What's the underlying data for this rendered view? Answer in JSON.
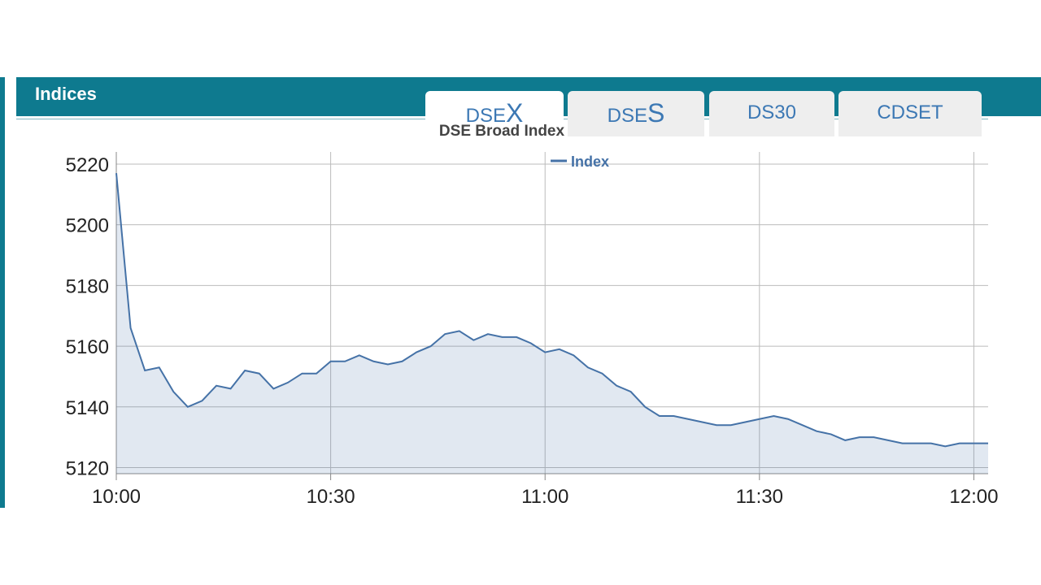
{
  "panel": {
    "title": "Indices"
  },
  "tabs": [
    {
      "label": "DSE",
      "accent": "X"
    },
    {
      "label": "DSE",
      "accent": "S"
    },
    {
      "label": "DS30"
    },
    {
      "label": "CDSET"
    }
  ],
  "chart_data": {
    "type": "line",
    "title": "DSE Broad Index",
    "x": [
      "10:00",
      "10:02",
      "10:04",
      "10:06",
      "10:08",
      "10:10",
      "10:12",
      "10:14",
      "10:16",
      "10:18",
      "10:20",
      "10:22",
      "10:24",
      "10:26",
      "10:28",
      "10:30",
      "10:32",
      "10:34",
      "10:36",
      "10:38",
      "10:40",
      "10:42",
      "10:44",
      "10:46",
      "10:48",
      "10:50",
      "10:52",
      "10:54",
      "10:56",
      "10:58",
      "11:00",
      "11:02",
      "11:04",
      "11:06",
      "11:08",
      "11:10",
      "11:12",
      "11:14",
      "11:16",
      "11:18",
      "11:20",
      "11:22",
      "11:24",
      "11:26",
      "11:28",
      "11:30",
      "11:32",
      "11:34",
      "11:36",
      "11:38",
      "11:40",
      "11:42",
      "11:44",
      "11:46",
      "11:48",
      "11:50",
      "11:52",
      "11:54",
      "11:56",
      "11:58",
      "12:00",
      "12:02"
    ],
    "series": [
      {
        "name": "Index",
        "color": "#4572a7",
        "values": [
          5217,
          5166,
          5152,
          5153,
          5145,
          5140,
          5142,
          5147,
          5146,
          5152,
          5151,
          5146,
          5148,
          5151,
          5151,
          5155,
          5155,
          5157,
          5155,
          5154,
          5155,
          5158,
          5160,
          5164,
          5165,
          5162,
          5164,
          5163,
          5163,
          5161,
          5158,
          5159,
          5157,
          5153,
          5151,
          5147,
          5145,
          5140,
          5137,
          5137,
          5136,
          5135,
          5134,
          5134,
          5135,
          5136,
          5137,
          5136,
          5134,
          5132,
          5131,
          5129,
          5130,
          5130,
          5129,
          5128,
          5128,
          5128,
          5127,
          5128,
          5128,
          5128
        ]
      }
    ],
    "xlim": [
      "10:00",
      "12:02"
    ],
    "xticks": [
      "10:00",
      "10:30",
      "11:00",
      "11:30",
      "12:00"
    ],
    "ylim": [
      5118,
      5224
    ],
    "yticks": [
      5120,
      5140,
      5160,
      5180,
      5200,
      5220
    ],
    "grid": true,
    "legend": "top"
  }
}
